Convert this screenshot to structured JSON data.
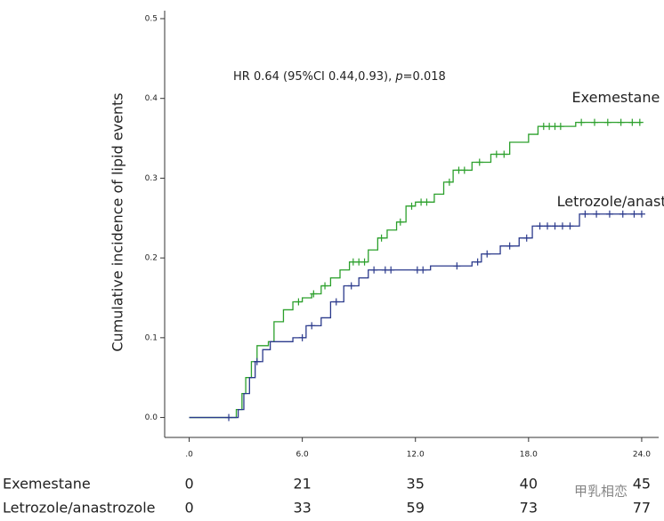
{
  "chart_data": {
    "type": "step",
    "ylabel": "Cumulative incidence of lipid events",
    "annotation": [
      "HR 0.64 (95%CI 0.44,0.93), ",
      "p",
      "=0.018"
    ],
    "xlim": [
      -1.3,
      24.9
    ],
    "ylim": [
      -0.025,
      0.51
    ],
    "xticks": [
      {
        "value": 0,
        "label": ".0"
      },
      {
        "value": 6,
        "label": "6.0"
      },
      {
        "value": 12,
        "label": "12.0"
      },
      {
        "value": 18,
        "label": "18.0"
      },
      {
        "value": 24,
        "label": "24.0"
      }
    ],
    "yticks": [
      {
        "value": 0,
        "label": "0.0"
      },
      {
        "value": 0.1,
        "label": "0.1"
      },
      {
        "value": 0.2,
        "label": "0.2"
      },
      {
        "value": 0.3,
        "label": "0.3"
      },
      {
        "value": 0.4,
        "label": "0.4"
      },
      {
        "value": 0.5,
        "label": "0.5"
      }
    ],
    "series": [
      {
        "name": "Exemestane",
        "color": "#2ca02c",
        "x": [
          0,
          2.2,
          2.5,
          2.8,
          3.0,
          3.3,
          3.6,
          4.2,
          4.5,
          5.0,
          5.5,
          6.0,
          6.5,
          7.0,
          7.5,
          8.0,
          8.5,
          9.5,
          10.0,
          10.5,
          11.0,
          11.5,
          12.0,
          13.0,
          13.5,
          14.0,
          15.0,
          16.0,
          17.0,
          18.0,
          18.5,
          20.5,
          24.0
        ],
        "values": [
          0,
          0,
          0.01,
          0.03,
          0.05,
          0.07,
          0.09,
          0.095,
          0.12,
          0.135,
          0.145,
          0.15,
          0.155,
          0.165,
          0.175,
          0.185,
          0.195,
          0.21,
          0.225,
          0.235,
          0.245,
          0.265,
          0.27,
          0.28,
          0.295,
          0.31,
          0.32,
          0.33,
          0.345,
          0.355,
          0.365,
          0.37,
          0.37
        ],
        "censored": [
          5.8,
          6.6,
          7.2,
          8.7,
          9.0,
          9.3,
          10.2,
          11.2,
          11.8,
          12.3,
          12.6,
          13.8,
          14.3,
          14.6,
          15.4,
          16.3,
          16.7,
          18.8,
          19.1,
          19.4,
          19.7,
          20.8,
          21.5,
          22.2,
          22.9,
          23.5,
          23.9
        ]
      },
      {
        "name": "Letrozole/anastrozole",
        "color": "#2b3a8c",
        "x": [
          0,
          2.3,
          2.6,
          2.9,
          3.2,
          3.5,
          3.9,
          4.3,
          5.5,
          6.2,
          7.0,
          7.5,
          8.2,
          9.0,
          9.5,
          12.8,
          15.0,
          15.5,
          16.5,
          17.5,
          18.2,
          20.0,
          20.7,
          24.0
        ],
        "values": [
          0,
          0,
          0.01,
          0.03,
          0.05,
          0.07,
          0.085,
          0.095,
          0.1,
          0.115,
          0.125,
          0.145,
          0.165,
          0.175,
          0.185,
          0.19,
          0.195,
          0.205,
          0.215,
          0.225,
          0.24,
          0.24,
          0.255,
          0.255
        ],
        "censored": [
          2.1,
          3.6,
          6.0,
          6.5,
          7.8,
          8.6,
          9.8,
          10.4,
          10.7,
          12.1,
          12.4,
          14.2,
          15.3,
          15.8,
          17.0,
          17.9,
          18.6,
          19.0,
          19.4,
          19.8,
          20.2,
          21.0,
          21.6,
          22.3,
          23.0,
          23.6,
          24.0
        ]
      }
    ],
    "label_positions": [
      [
        20.3,
        0.4
      ],
      [
        19.5,
        0.27
      ]
    ],
    "risk_table": {
      "rows": [
        {
          "label": "Exemestane",
          "values": [
            0,
            21,
            35,
            40,
            45
          ]
        },
        {
          "label": "Letrozole/anastrozole",
          "values": [
            0,
            33,
            59,
            73,
            77
          ]
        }
      ]
    },
    "watermark": "甲乳相恋"
  }
}
